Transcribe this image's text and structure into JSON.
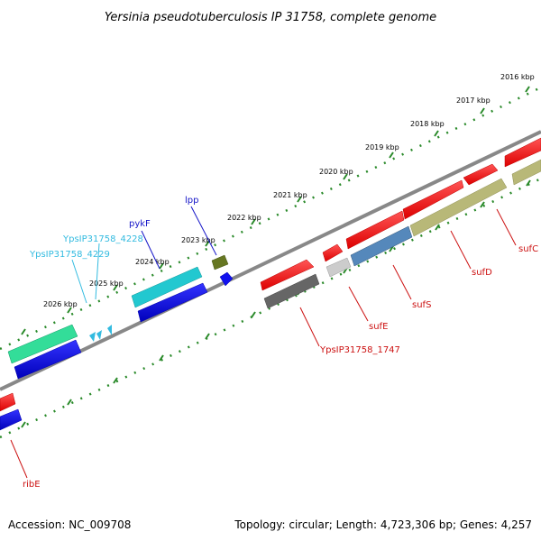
{
  "title": "Yersinia pseudotuberculosis IP 31758, complete genome",
  "footer": {
    "accession": "Accession: NC_009708",
    "summary": "Topology: circular; Length: 4,723,306 bp; Genes: 4,257"
  },
  "scale_labels": [
    "2016 kbp",
    "2017 kbp",
    "2018 kbp",
    "2019 kbp",
    "2020 kbp",
    "2021 kbp",
    "2022 kbp",
    "2023 kbp",
    "2024 kbp",
    "2025 kbp",
    "2026 kbp"
  ],
  "gene_labels": [
    {
      "name": "lpp",
      "color": "#1515c8"
    },
    {
      "name": "pykF",
      "color": "#1515c8"
    },
    {
      "name": "YpsIP31758_4228",
      "color": "#33bbe0"
    },
    {
      "name": "YpsIP31758_4229",
      "color": "#33bbe0"
    },
    {
      "name": "sufC",
      "color": "#cc1111"
    },
    {
      "name": "sufD",
      "color": "#cc1111"
    },
    {
      "name": "sufS",
      "color": "#cc1111"
    },
    {
      "name": "sufE",
      "color": "#cc1111"
    },
    {
      "name": "YpsIP31758_1747",
      "color": "#cc1111"
    },
    {
      "name": "ribE",
      "color": "#cc1111"
    }
  ],
  "colors": {
    "backbone": "#888888",
    "ticks": "#2a8a2a",
    "gene_red": "#ff0000",
    "gene_blue": "#0000dd",
    "gene_cyan": "#22c8d0",
    "gene_teal": "#33dd99",
    "gene_olive": "#b8b878",
    "gene_steel": "#5588bb",
    "gene_gray": "#666666",
    "gene_darkolive": "#667722"
  }
}
